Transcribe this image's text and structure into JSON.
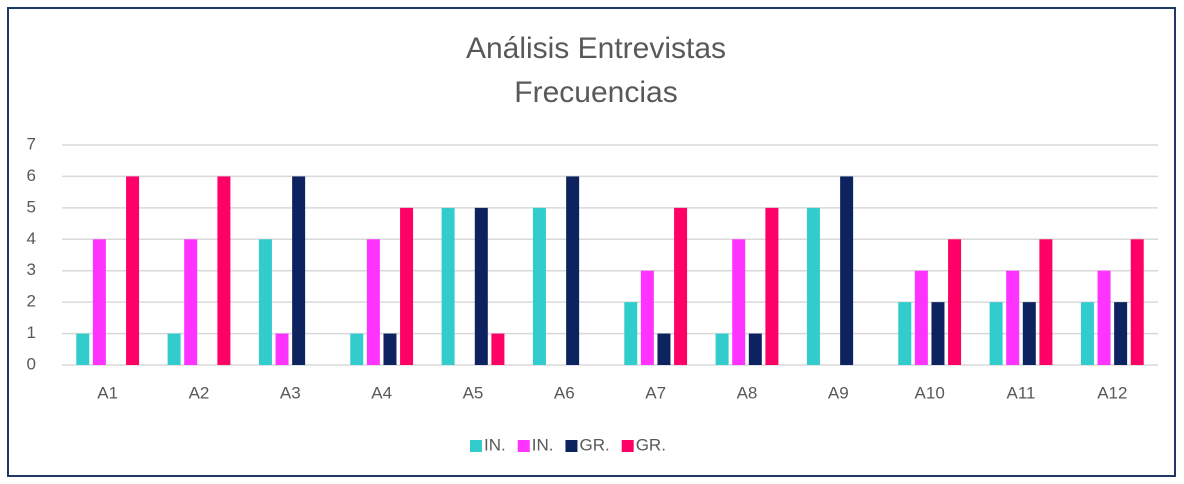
{
  "chart_data": {
    "type": "bar",
    "title": [
      "Análisis Entrevistas",
      "Frecuencias"
    ],
    "categories": [
      "A1",
      "A2",
      "A3",
      "A4",
      "A5",
      "A6",
      "A7",
      "A8",
      "A9",
      "A10",
      "A11",
      "A12"
    ],
    "series": [
      {
        "name": "IN.",
        "color": "#33cccc",
        "values": [
          1,
          1,
          4,
          1,
          5,
          5,
          2,
          1,
          5,
          2,
          2,
          2
        ]
      },
      {
        "name": "IN.",
        "color": "#ff33ff",
        "values": [
          4,
          4,
          1,
          4,
          0,
          0,
          3,
          4,
          0,
          3,
          3,
          3
        ]
      },
      {
        "name": "GR.",
        "color": "#0d2360",
        "values": [
          0,
          0,
          6,
          1,
          5,
          6,
          1,
          1,
          6,
          2,
          2,
          2
        ]
      },
      {
        "name": "GR.",
        "color": "#ff0066",
        "values": [
          6,
          6,
          0,
          5,
          1,
          0,
          5,
          5,
          0,
          4,
          4,
          4
        ]
      }
    ],
    "ylim": [
      0,
      7
    ],
    "yticks": [
      0,
      1,
      2,
      3,
      4,
      5,
      6,
      7
    ],
    "grid": true,
    "legend": "bottom"
  }
}
